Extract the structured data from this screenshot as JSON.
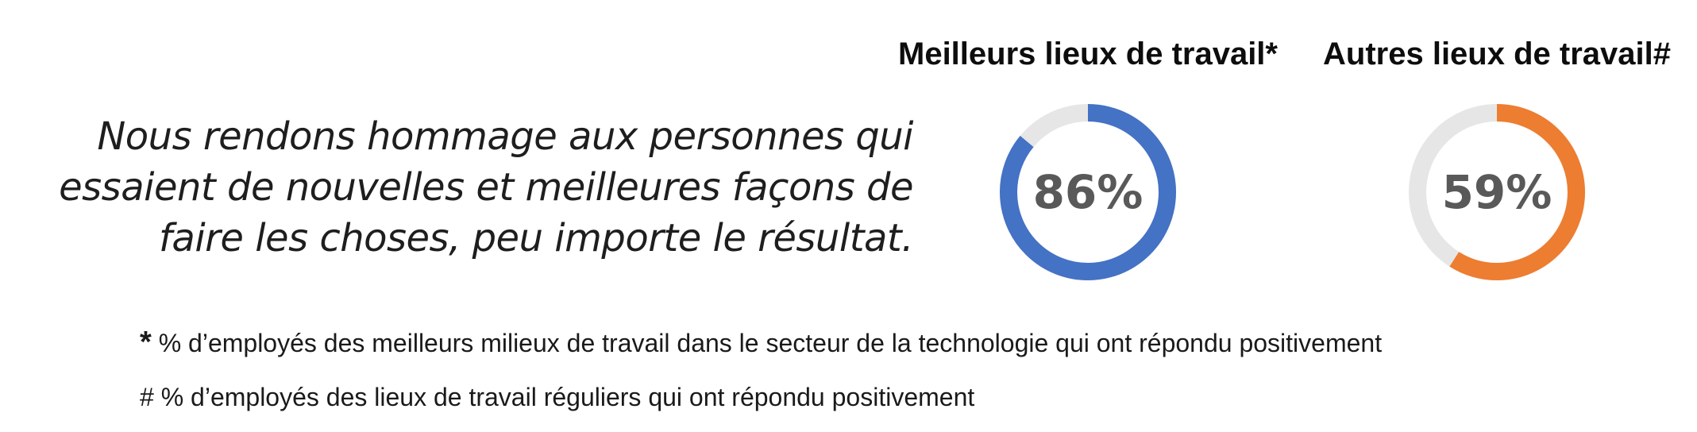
{
  "statement": {
    "lines": [
      "Nous rendons hommage aux personnes qui",
      "essaient de nouvelles et meilleures façons de",
      "faire les choses, peu importe le résultat."
    ]
  },
  "colors": {
    "track": "#e6e6e6",
    "best": "#4472c4",
    "other": "#ed7d31",
    "value_text": "#595959"
  },
  "chart_data": [
    {
      "type": "pie",
      "title": "Meilleurs lieux de travail*",
      "values": [
        86,
        14
      ],
      "label": "86%",
      "color": "#4472c4"
    },
    {
      "type": "pie",
      "title": "Autres lieux de travail#",
      "values": [
        59,
        41
      ],
      "label": "59%",
      "color": "#ed7d31"
    }
  ],
  "footnotes": [
    {
      "mark": "*",
      "text": "% d’employés des meilleurs milieux de travail dans le secteur de la technologie qui ont répondu positivement"
    },
    {
      "mark": "#",
      "text": "% d’employés des lieux de travail réguliers qui ont répondu positivement"
    }
  ]
}
